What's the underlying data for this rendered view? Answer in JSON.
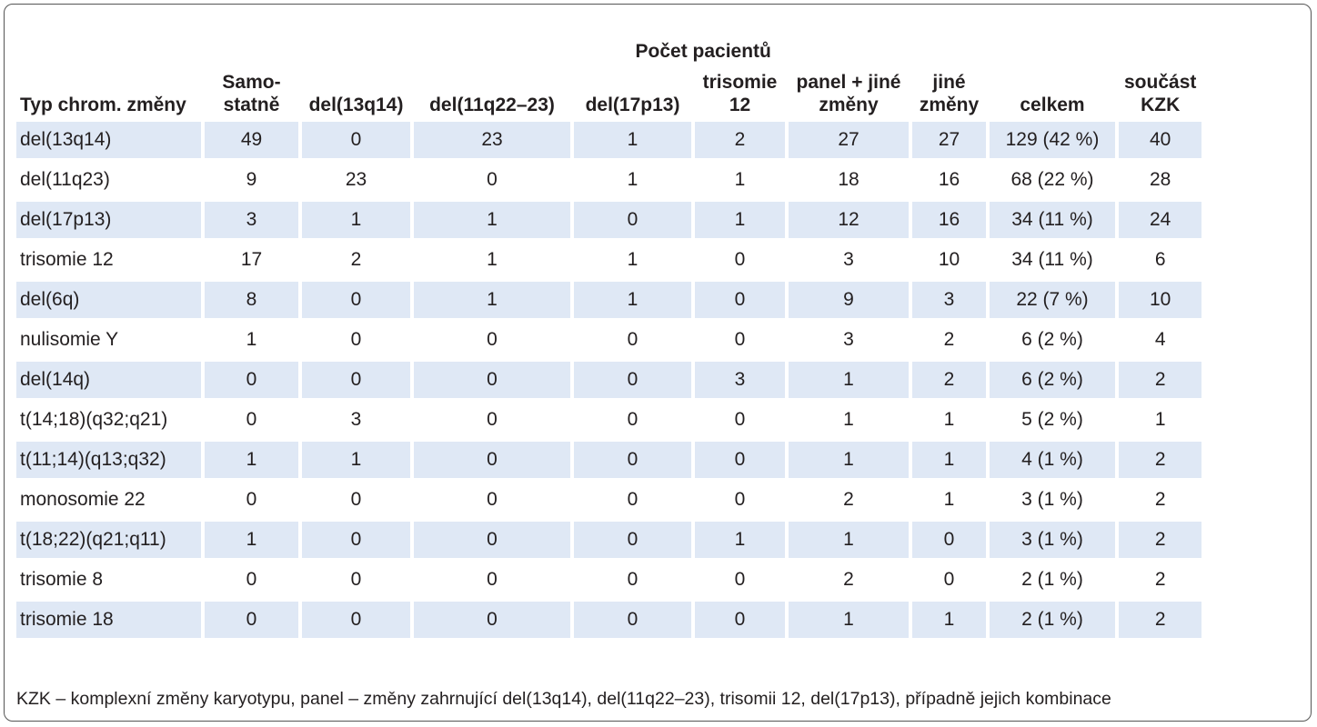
{
  "table": {
    "group_header": "Počet pacientů",
    "columns": [
      "Typ chrom. změny",
      "Samo-statně",
      "del(13q14)",
      "del(11q22–23)",
      "del(17p13)",
      "trisomie 12",
      "panel + jiné změny",
      "jiné změny",
      "celkem",
      "součást KZK"
    ],
    "rows": [
      [
        "del(13q14)",
        "49",
        "0",
        "23",
        "1",
        "2",
        "27",
        "27",
        "129 (42 %)",
        "40"
      ],
      [
        "del(11q23)",
        "9",
        "23",
        "0",
        "1",
        "1",
        "18",
        "16",
        "68 (22 %)",
        "28"
      ],
      [
        "del(17p13)",
        "3",
        "1",
        "1",
        "0",
        "1",
        "12",
        "16",
        "34 (11 %)",
        "24"
      ],
      [
        "trisomie 12",
        "17",
        "2",
        "1",
        "1",
        "0",
        "3",
        "10",
        "34 (11 %)",
        "6"
      ],
      [
        "del(6q)",
        "8",
        "0",
        "1",
        "1",
        "0",
        "9",
        "3",
        "22 (7 %)",
        "10"
      ],
      [
        "nulisomie Y",
        "1",
        "0",
        "0",
        "0",
        "0",
        "3",
        "2",
        "6 (2 %)",
        "4"
      ],
      [
        "del(14q)",
        "0",
        "0",
        "0",
        "0",
        "3",
        "1",
        "2",
        "6 (2 %)",
        "2"
      ],
      [
        "t(14;18)(q32;q21)",
        "0",
        "3",
        "0",
        "0",
        "0",
        "1",
        "1",
        "5 (2 %)",
        "1"
      ],
      [
        "t(11;14)(q13;q32)",
        "1",
        "1",
        "0",
        "0",
        "0",
        "1",
        "1",
        "4 (1 %)",
        "2"
      ],
      [
        "monosomie 22",
        "0",
        "0",
        "0",
        "0",
        "0",
        "2",
        "1",
        "3 (1 %)",
        "2"
      ],
      [
        "t(18;22)(q21;q11)",
        "1",
        "0",
        "0",
        "0",
        "1",
        "1",
        "0",
        "3 (1 %)",
        "2"
      ],
      [
        "trisomie 8",
        "0",
        "0",
        "0",
        "0",
        "0",
        "2",
        "0",
        "2 (1 %)",
        "2"
      ],
      [
        "trisomie 18",
        "0",
        "0",
        "0",
        "0",
        "0",
        "1",
        "1",
        "2 (1 %)",
        "2"
      ]
    ],
    "footnote": "KZK – komplexní změny karyotypu, panel – změny zahrnující del(13q14), del(11q22–23), trisomii 12, del(17p13), případně jejich kombinace"
  }
}
